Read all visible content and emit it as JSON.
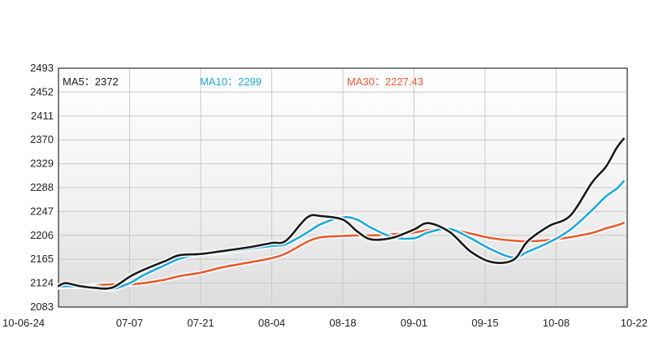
{
  "chart_data": {
    "type": "line",
    "title": "",
    "xlabel": "",
    "ylabel": "",
    "x_tick_labels": [
      "10-06-24",
      "07-07",
      "07-21",
      "08-04",
      "08-18",
      "09-01",
      "09-15",
      "10-08",
      "10-22"
    ],
    "y_ticks": [
      2083,
      2124,
      2165,
      2206,
      2247,
      2288,
      2329,
      2370,
      2411,
      2452,
      2493
    ],
    "ylim": [
      2083,
      2493
    ],
    "grid": true,
    "legend": [
      {
        "label": "MA5",
        "value": "2372",
        "color": "#1a1a1a"
      },
      {
        "label": "MA10",
        "value": "2299",
        "color": "#1ea7d8"
      },
      {
        "label": "MA30",
        "value": "2227.43",
        "color": "#e85a2e"
      }
    ],
    "x": [
      0.0,
      0.1,
      0.3,
      0.5,
      0.75,
      1.0,
      1.2,
      1.5,
      1.7,
      2.0,
      2.3,
      2.7,
      3.0,
      3.2,
      3.5,
      3.7,
      4.0,
      4.2,
      4.4,
      4.7,
      5.0,
      5.2,
      5.5,
      5.8,
      6.1,
      6.4,
      6.6,
      6.9,
      7.2,
      7.5,
      7.7,
      7.85,
      7.95
    ],
    "series": [
      {
        "name": "MA5",
        "color": "#1a1a1a",
        "values": [
          2119,
          2124,
          2119,
          2116,
          2116,
          2135,
          2147,
          2162,
          2172,
          2174,
          2179,
          2186,
          2193,
          2197,
          2237,
          2239,
          2233,
          2213,
          2199,
          2202,
          2216,
          2227,
          2212,
          2178,
          2160,
          2164,
          2196,
          2222,
          2240,
          2296,
          2324,
          2356,
          2372
        ]
      },
      {
        "name": "MA10",
        "color": "#1ea7d8",
        "values": [
          2117,
          2119,
          2118,
          2118,
          2114,
          2124,
          2138,
          2155,
          2166,
          2174,
          2177,
          2183,
          2188,
          2191,
          2211,
          2226,
          2237,
          2233,
          2219,
          2203,
          2201,
          2211,
          2217,
          2201,
          2181,
          2168,
          2178,
          2194,
          2216,
          2249,
          2273,
          2286,
          2299
        ]
      },
      {
        "name": "MA30",
        "color": "#e85a2e",
        "values": [
          2117,
          2118,
          2119,
          2120,
          2122,
          2122,
          2124,
          2130,
          2136,
          2142,
          2151,
          2160,
          2167,
          2175,
          2195,
          2203,
          2205,
          2206,
          2206,
          2208,
          2211,
          2215,
          2217,
          2209,
          2201,
          2197,
          2196,
          2198,
          2203,
          2210,
          2218,
          2223,
          2227.43
        ]
      }
    ]
  }
}
